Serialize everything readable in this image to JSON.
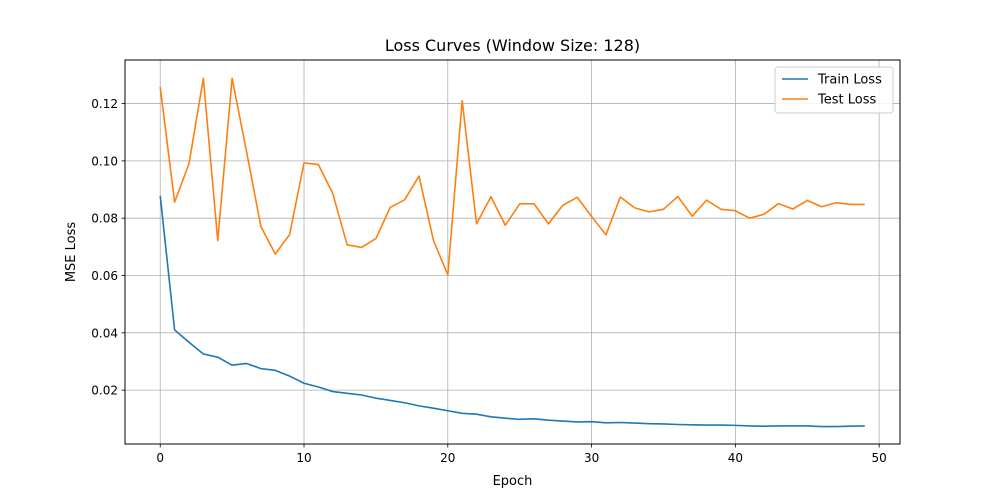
{
  "chart_data": {
    "type": "line",
    "title": "Loss Curves (Window Size: 128)",
    "xlabel": "Epoch",
    "ylabel": "MSE Loss",
    "xlim": [
      -2.45,
      51.45
    ],
    "ylim": [
      0.0012,
      0.1352
    ],
    "xticks": [
      0,
      10,
      20,
      30,
      40,
      50
    ],
    "xtick_labels": [
      "0",
      "10",
      "20",
      "30",
      "40",
      "50"
    ],
    "yticks": [
      0.02,
      0.04,
      0.06,
      0.08,
      0.1,
      0.12
    ],
    "ytick_labels": [
      "0.02",
      "0.04",
      "0.06",
      "0.08",
      "0.10",
      "0.12"
    ],
    "grid": true,
    "legend_position": "top-right",
    "x": [
      0,
      1,
      2,
      3,
      4,
      5,
      6,
      7,
      8,
      9,
      10,
      11,
      12,
      13,
      14,
      15,
      16,
      17,
      18,
      19,
      20,
      21,
      22,
      23,
      24,
      25,
      26,
      27,
      28,
      29,
      30,
      31,
      32,
      33,
      34,
      35,
      36,
      37,
      38,
      39,
      40,
      41,
      42,
      43,
      44,
      45,
      46,
      47,
      48,
      49
    ],
    "series": [
      {
        "name": "Train Loss",
        "color": "#1f77b4",
        "values": [
          0.0878,
          0.041,
          0.0367,
          0.0326,
          0.0315,
          0.0287,
          0.0293,
          0.0275,
          0.0269,
          0.0249,
          0.0224,
          0.0211,
          0.0195,
          0.0189,
          0.0183,
          0.0172,
          0.0164,
          0.0156,
          0.0145,
          0.0137,
          0.0128,
          0.0119,
          0.0116,
          0.0107,
          0.0102,
          0.0098,
          0.01,
          0.0095,
          0.0092,
          0.0089,
          0.009,
          0.0086,
          0.0087,
          0.0085,
          0.0083,
          0.0082,
          0.008,
          0.0079,
          0.0078,
          0.0078,
          0.0077,
          0.0075,
          0.0074,
          0.0075,
          0.0075,
          0.0075,
          0.0073,
          0.0073,
          0.0074,
          0.0075
        ]
      },
      {
        "name": "Test Loss",
        "color": "#ff7f0e",
        "values": [
          0.1258,
          0.0856,
          0.099,
          0.1288,
          0.0722,
          0.1288,
          0.1033,
          0.0771,
          0.0675,
          0.0743,
          0.0993,
          0.0987,
          0.0886,
          0.0707,
          0.0698,
          0.0729,
          0.0838,
          0.0864,
          0.0947,
          0.0723,
          0.0602,
          0.121,
          0.078,
          0.0875,
          0.0775,
          0.085,
          0.085,
          0.078,
          0.0845,
          0.0873,
          0.0806,
          0.0742,
          0.0874,
          0.0836,
          0.0822,
          0.0831,
          0.0876,
          0.0807,
          0.0863,
          0.0831,
          0.0826,
          0.08,
          0.0814,
          0.0851,
          0.0832,
          0.0862,
          0.084,
          0.0854,
          0.0848,
          0.0848
        ]
      }
    ]
  }
}
